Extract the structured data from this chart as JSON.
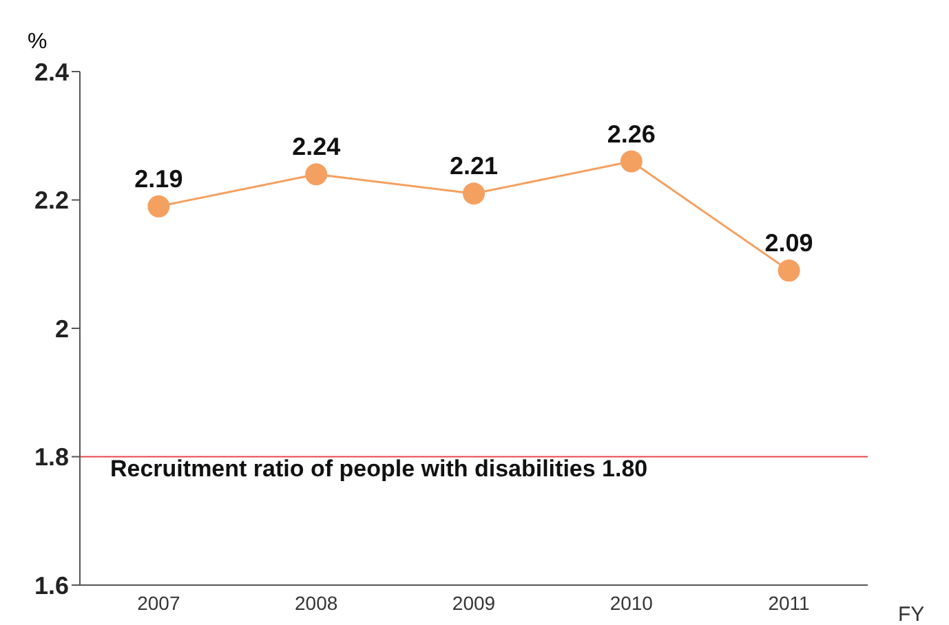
{
  "chart_data": {
    "type": "line",
    "ylabel": "%",
    "xlabel": "FY",
    "categories": [
      "2007",
      "2008",
      "2009",
      "2010",
      "2011"
    ],
    "series": [
      {
        "color": "#f4a060",
        "values": [
          2.19,
          2.24,
          2.21,
          2.26,
          2.09
        ]
      }
    ],
    "ylim": [
      1.6,
      2.4
    ],
    "yticks": [
      1.6,
      1.8,
      2,
      2.2,
      2.4
    ],
    "grid": false,
    "marker": "circle",
    "line_style": "solid",
    "data_labels": true,
    "ref_lines": [
      {
        "axis": "y",
        "value": 1.8,
        "label": "Recruitment ratio of people with disabilities  1.80",
        "color": "#e8454a"
      }
    ]
  }
}
